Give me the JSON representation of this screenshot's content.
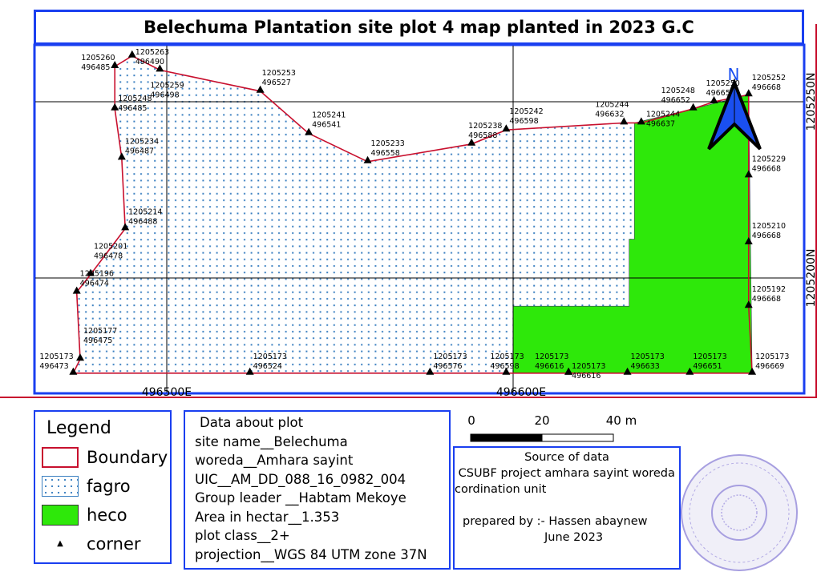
{
  "title": "Belechuma Plantation site plot 4 map planted in 2023 G.C",
  "map": {
    "grid_labels": {
      "e1": "496500E",
      "e2": "496600E",
      "n1": "1205250N",
      "n2": "1205200N"
    },
    "grid": {
      "eastings": [
        496500,
        496600
      ],
      "northings": [
        1205250,
        1205200
      ]
    },
    "north_label": "N",
    "colors": {
      "boundary": "#c8102e",
      "fagro_dots": "#3a7fc0",
      "heco": "#2ee80a",
      "frame": "#1a3ff0",
      "north_arrow": "#1a4ff0"
    },
    "corners": [
      {
        "n": "1205260",
        "e": "496485"
      },
      {
        "n": "1205263",
        "e": "496490"
      },
      {
        "n": "1205259",
        "e": "496498"
      },
      {
        "n": "1205253",
        "e": "496527"
      },
      {
        "n": "1205241",
        "e": "496541"
      },
      {
        "n": "1205233",
        "e": "496558"
      },
      {
        "n": "1205238",
        "e": "496588"
      },
      {
        "n": "1205242",
        "e": "496598"
      },
      {
        "n": "1205244",
        "e": "496632"
      },
      {
        "n": "1205244",
        "e": "496637"
      },
      {
        "n": "1205248",
        "e": "496652"
      },
      {
        "n": "1205250",
        "e": "496658"
      },
      {
        "n": "1205252",
        "e": "496668"
      },
      {
        "n": "1205229",
        "e": "496668"
      },
      {
        "n": "1205210",
        "e": "496668"
      },
      {
        "n": "1205192",
        "e": "496668"
      },
      {
        "n": "1205173",
        "e": "496669"
      },
      {
        "n": "1205173",
        "e": "496651"
      },
      {
        "n": "1205173",
        "e": "496633"
      },
      {
        "n": "1205173",
        "e": "496616"
      },
      {
        "n": "1205173",
        "e": "496616"
      },
      {
        "n": "1205173",
        "e": "496598"
      },
      {
        "n": "1205173",
        "e": "496576"
      },
      {
        "n": "1205173",
        "e": "496524"
      },
      {
        "n": "1205173",
        "e": "496473"
      },
      {
        "n": "1205177",
        "e": "496475"
      },
      {
        "n": "1205196",
        "e": "496474"
      },
      {
        "n": "1205201",
        "e": "496478"
      },
      {
        "n": "1205214",
        "e": "496488"
      },
      {
        "n": "1205234",
        "e": "496487"
      },
      {
        "n": "1205248",
        "e": "496485"
      }
    ],
    "heco_polygon": [
      [
        496635,
        1205244
      ],
      [
        496652,
        1205248
      ],
      [
        496668,
        1205252
      ],
      [
        496669,
        1205173
      ],
      [
        496600,
        1205173
      ],
      [
        496600,
        1205192
      ],
      [
        496633.5,
        1205192
      ],
      [
        496633.5,
        1205211
      ],
      [
        496635,
        1205211
      ]
    ]
  },
  "legend": {
    "title": "Legend",
    "items": [
      {
        "label": "Boundary"
      },
      {
        "label": "fagro"
      },
      {
        "label": "heco"
      },
      {
        "label": "corner"
      }
    ]
  },
  "info": {
    "heading": "Data about plot",
    "lines": [
      "site name__Belechuma",
      "woreda__Amhara sayint",
      "UIC__AM_DD_088_16_0982_004",
      "Group leader __Habtam Mekoye",
      "Area in hectar__1.353",
      "plot class__2+",
      "projection__WGS 84 UTM zone 37N"
    ]
  },
  "scale": {
    "t0": "0",
    "t1": "20",
    "t2": "40 m"
  },
  "source": {
    "heading": "Source of data",
    "line1": " CSUBF project amhara sayint woreda",
    "line2": "cordination unit",
    "prepared": "prepared by :- Hassen abaynew",
    "date": "June 2023"
  },
  "stamp": {
    "text": "official stamp"
  }
}
